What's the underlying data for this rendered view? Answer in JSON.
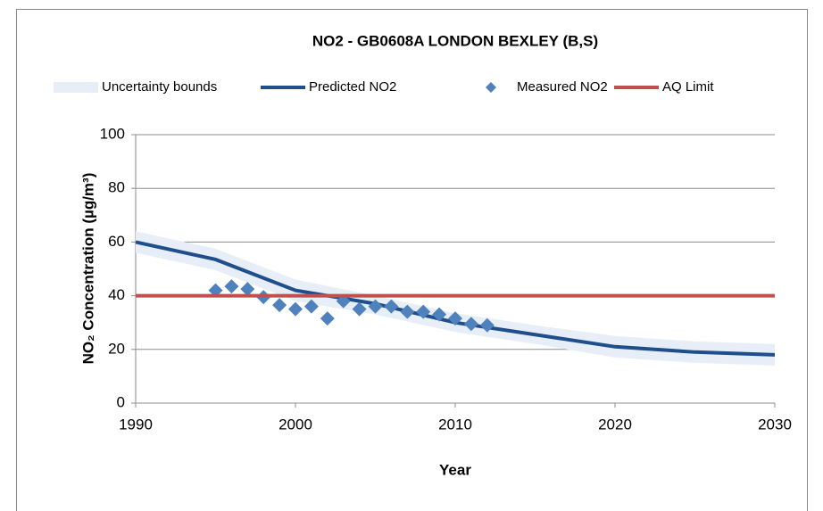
{
  "chart_data": {
    "type": "line",
    "title": "NO2 - GB0608A LONDON BEXLEY (B,S)",
    "xlabel": "Year",
    "ylabel": "NO₂ Concentration (µg/m³)",
    "xlim": [
      1990,
      2030
    ],
    "xticks": [
      1990,
      2000,
      2010,
      2020,
      2030
    ],
    "ylim": [
      0,
      100
    ],
    "yticks": [
      0,
      20,
      40,
      60,
      80,
      100
    ],
    "grid": true,
    "legend": "top",
    "series": [
      {
        "name": "Uncertainty bounds",
        "kind": "band",
        "color": "#e8eef7",
        "x": [
          1990,
          1995,
          2000,
          2005,
          2010,
          2015,
          2020,
          2025,
          2030
        ],
        "upper": [
          64,
          57.5,
          46,
          40,
          33.5,
          29,
          25,
          23,
          22
        ],
        "lower": [
          56,
          49.5,
          38,
          33,
          26.5,
          22,
          17,
          15,
          14
        ]
      },
      {
        "name": "Predicted NO2",
        "kind": "line",
        "color": "#1f4e8c",
        "x": [
          1990,
          1995,
          2000,
          2005,
          2010,
          2015,
          2020,
          2025,
          2030
        ],
        "values": [
          60,
          53.5,
          42,
          37,
          30,
          25.5,
          21,
          19,
          18
        ]
      },
      {
        "name": "Measured NO2",
        "kind": "marker",
        "color": "#4f81bd",
        "x": [
          1995,
          1996,
          1997,
          1998,
          1999,
          2000,
          2001,
          2002,
          2003,
          2004,
          2005,
          2006,
          2007,
          2008,
          2009,
          2010,
          2011,
          2012
        ],
        "values": [
          42,
          43.5,
          42.5,
          39.5,
          36.5,
          35,
          36,
          31.5,
          38,
          35,
          36,
          36,
          34,
          34,
          33,
          31.5,
          29.5,
          29
        ]
      },
      {
        "name": "AQ Limit",
        "kind": "line",
        "color": "#c0504d",
        "x": [
          1990,
          2030
        ],
        "values": [
          40,
          40
        ]
      }
    ]
  }
}
